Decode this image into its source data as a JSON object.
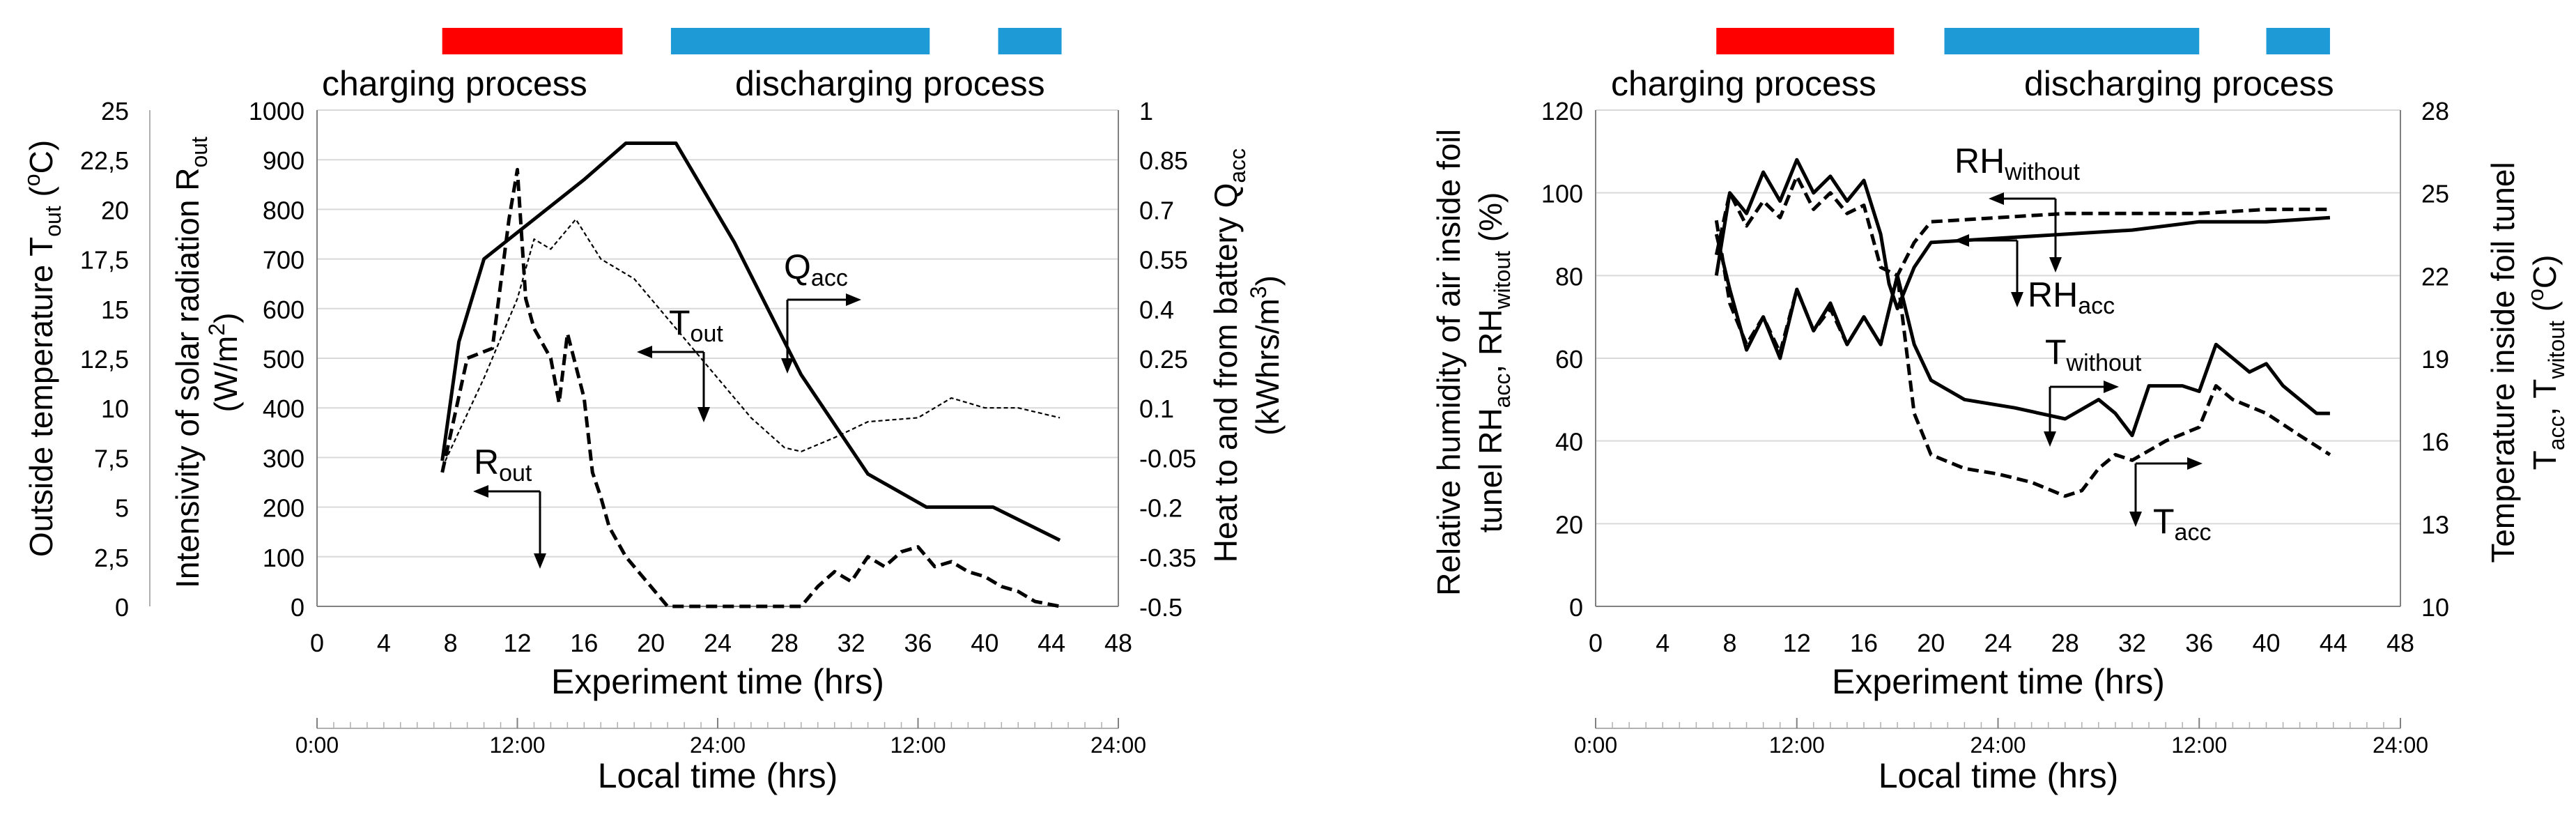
{
  "colors": {
    "charging": "#ff0000",
    "discharging": "#1e9bd7",
    "axis": "#808080",
    "grid": "#d9d9d9",
    "ink": "#000000"
  },
  "process_labels": {
    "charging": "charging process",
    "discharging": "discharging process"
  },
  "chart_data": [
    {
      "type": "line",
      "id": "left",
      "x_axis": {
        "label": "Experiment time (hrs)",
        "range": [
          0,
          48
        ],
        "ticks": [
          "0",
          "4",
          "8",
          "12",
          "16",
          "20",
          "24",
          "28",
          "32",
          "36",
          "40",
          "44",
          "48"
        ]
      },
      "local_time_axis": {
        "label": "Local time (hrs)",
        "ticks": [
          "0:00",
          "12:00",
          "24:00",
          "12:00",
          "24:00"
        ]
      },
      "y_axes": [
        {
          "side": "outer-left",
          "label": "Outside temperature T_out (°C)",
          "range": [
            0,
            25
          ],
          "ticks": [
            "0",
            "2,5",
            "5",
            "7,5",
            "10",
            "12,5",
            "15",
            "17,5",
            "20",
            "22,5",
            "25"
          ]
        },
        {
          "side": "left",
          "label": "Intensivity of solar radiation R_out (W/m²)",
          "range": [
            0,
            1000
          ],
          "ticks": [
            "0",
            "100",
            "200",
            "300",
            "400",
            "500",
            "600",
            "700",
            "800",
            "900",
            "1000"
          ]
        },
        {
          "side": "right",
          "label": "Heat to and from battery Q_acc (kWhrs/m³)",
          "range": [
            -0.5,
            1
          ],
          "ticks": [
            "-0.5",
            "-0.35",
            "-0.2",
            "-0.05",
            "0.1",
            "0.25",
            "0.4",
            "0.55",
            "0.7",
            "0.85",
            "1"
          ]
        }
      ],
      "process_bars": [
        {
          "phase": "charging",
          "x_start": 7.5,
          "x_end": 18.3
        },
        {
          "phase": "discharging",
          "x_start": 21.2,
          "x_end": 36.7
        },
        {
          "phase": "discharging",
          "x_start": 40.8,
          "x_end": 44.6
        }
      ],
      "series": [
        {
          "name": "Q_acc",
          "axis": "right",
          "style": "solid",
          "x": [
            7.5,
            8.5,
            10,
            12,
            14,
            16,
            18.5,
            21.5,
            25,
            29,
            33,
            36.5,
            40.5,
            44.5
          ],
          "values": [
            -0.06,
            0.3,
            0.55,
            0.63,
            0.71,
            0.79,
            0.9,
            0.9,
            0.6,
            0.2,
            -0.1,
            -0.2,
            -0.2,
            -0.3
          ]
        },
        {
          "name": "T_out",
          "axis": "outer-left",
          "style": "thin-dash",
          "x": [
            7.5,
            10,
            12,
            13,
            14,
            15.5,
            17,
            19,
            21,
            24,
            26,
            28,
            29,
            31,
            33,
            36,
            38,
            40,
            42,
            44.5
          ],
          "values": [
            7,
            11.5,
            15.5,
            18.5,
            18,
            19.5,
            17.5,
            16.5,
            14.5,
            11.5,
            9.5,
            8,
            7.8,
            8.5,
            9.3,
            9.5,
            10.5,
            10,
            10,
            9.5
          ]
        },
        {
          "name": "R_out",
          "axis": "left",
          "style": "dash",
          "x": [
            7.5,
            9,
            10.5,
            11.5,
            12,
            12.5,
            13,
            14,
            14.5,
            15,
            16,
            16.5,
            17,
            17.5,
            18.5,
            19.5,
            20.5,
            21,
            29,
            30,
            31,
            32,
            33,
            34,
            35,
            36,
            37,
            38,
            39,
            40,
            41,
            42,
            43,
            44.5
          ],
          "values": [
            270,
            500,
            520,
            780,
            880,
            620,
            560,
            500,
            410,
            550,
            420,
            270,
            220,
            160,
            100,
            60,
            20,
            0,
            0,
            40,
            70,
            50,
            100,
            80,
            110,
            120,
            80,
            90,
            70,
            60,
            40,
            30,
            10,
            0
          ]
        }
      ],
      "series_labels": [
        {
          "series": "Q_acc",
          "base": "Q",
          "sub": "acc"
        },
        {
          "series": "T_out",
          "base": "T",
          "sub": "out"
        },
        {
          "series": "R_out",
          "base": "R",
          "sub": "out"
        }
      ]
    },
    {
      "type": "line",
      "id": "right",
      "x_axis": {
        "label": "Experiment time (hrs)",
        "range": [
          0,
          48
        ],
        "ticks": [
          "0",
          "4",
          "8",
          "12",
          "16",
          "20",
          "24",
          "28",
          "32",
          "36",
          "40",
          "44",
          "48"
        ]
      },
      "local_time_axis": {
        "label": "Local time (hrs)",
        "ticks": [
          "0:00",
          "12:00",
          "24:00",
          "12:00",
          "24:00"
        ]
      },
      "y_axes": [
        {
          "side": "left",
          "label": "Relative humidity of air inside foil tunel RH_acc, RH_witout (%)",
          "range": [
            0,
            120
          ],
          "ticks": [
            "0",
            "20",
            "40",
            "60",
            "80",
            "100",
            "120"
          ]
        },
        {
          "side": "right",
          "label": "Temperature inside foil tunel T_acc, T_witout (°C)",
          "range": [
            10,
            28
          ],
          "ticks": [
            "10",
            "13",
            "16",
            "19",
            "22",
            "25",
            "28"
          ]
        }
      ],
      "process_bars": [
        {
          "phase": "charging",
          "x_start": 7.2,
          "x_end": 17.8
        },
        {
          "phase": "discharging",
          "x_start": 20.8,
          "x_end": 36
        },
        {
          "phase": "discharging",
          "x_start": 40,
          "x_end": 43.8
        }
      ],
      "series": [
        {
          "name": "RH_without",
          "axis": "left",
          "style": "dash",
          "x": [
            7.2,
            8,
            9,
            10,
            11,
            12,
            13,
            14,
            15,
            16,
            17,
            18,
            19,
            20,
            24,
            28,
            32,
            36,
            40,
            43.8
          ],
          "values": [
            85,
            100,
            92,
            98,
            94,
            104,
            96,
            100,
            95,
            97,
            82,
            80,
            88,
            93,
            94,
            95,
            95,
            95,
            96,
            96
          ]
        },
        {
          "name": "RH_acc",
          "axis": "left",
          "style": "solid",
          "x": [
            7.2,
            8,
            9,
            10,
            11,
            12,
            13,
            14,
            15,
            16,
            17,
            17.5,
            18,
            19,
            20,
            24,
            28,
            32,
            36,
            40,
            43.8
          ],
          "values": [
            80,
            100,
            95,
            105,
            98,
            108,
            100,
            104,
            98,
            103,
            90,
            78,
            72,
            82,
            88,
            89,
            90,
            91,
            93,
            93,
            94
          ]
        },
        {
          "name": "T_without",
          "axis": "right",
          "style": "solid",
          "x": [
            7.2,
            8,
            9,
            10,
            11,
            12,
            13,
            14,
            15,
            16,
            17,
            18,
            19,
            20,
            22,
            25,
            28,
            30,
            31,
            32,
            33,
            35,
            36,
            37,
            38,
            39,
            40,
            41,
            42,
            43,
            43.8
          ],
          "values": [
            23.5,
            21.5,
            19.3,
            20.5,
            19,
            21.5,
            20,
            21,
            19.5,
            20.5,
            19.5,
            22,
            19.5,
            18.2,
            17.5,
            17.2,
            16.8,
            17.5,
            17,
            16.2,
            18,
            18,
            17.8,
            19.5,
            19,
            18.5,
            18.8,
            18,
            17.5,
            17,
            17
          ]
        },
        {
          "name": "T_acc",
          "axis": "right",
          "style": "dash",
          "x": [
            7.2,
            8,
            9,
            10,
            11,
            12,
            13,
            14,
            15,
            16,
            17,
            18,
            19,
            20,
            22,
            24,
            26,
            28,
            29,
            30,
            31,
            32,
            34,
            36,
            37,
            38,
            40,
            42,
            43.8
          ],
          "values": [
            24,
            21,
            19.5,
            20.5,
            19.2,
            21.5,
            20,
            20.8,
            19.5,
            20.5,
            19.5,
            22,
            17,
            15.5,
            15,
            14.8,
            14.5,
            14,
            14.2,
            15,
            15.5,
            15.3,
            16,
            16.5,
            18,
            17.5,
            17,
            16.2,
            15.5
          ]
        }
      ],
      "series_labels": [
        {
          "series": "RH_without",
          "base": "RH",
          "sub": "without"
        },
        {
          "series": "RH_acc",
          "base": "RH",
          "sub": "acc"
        },
        {
          "series": "T_without",
          "base": "T",
          "sub": "without"
        },
        {
          "series": "T_acc",
          "base": "T",
          "sub": "acc"
        }
      ]
    }
  ]
}
